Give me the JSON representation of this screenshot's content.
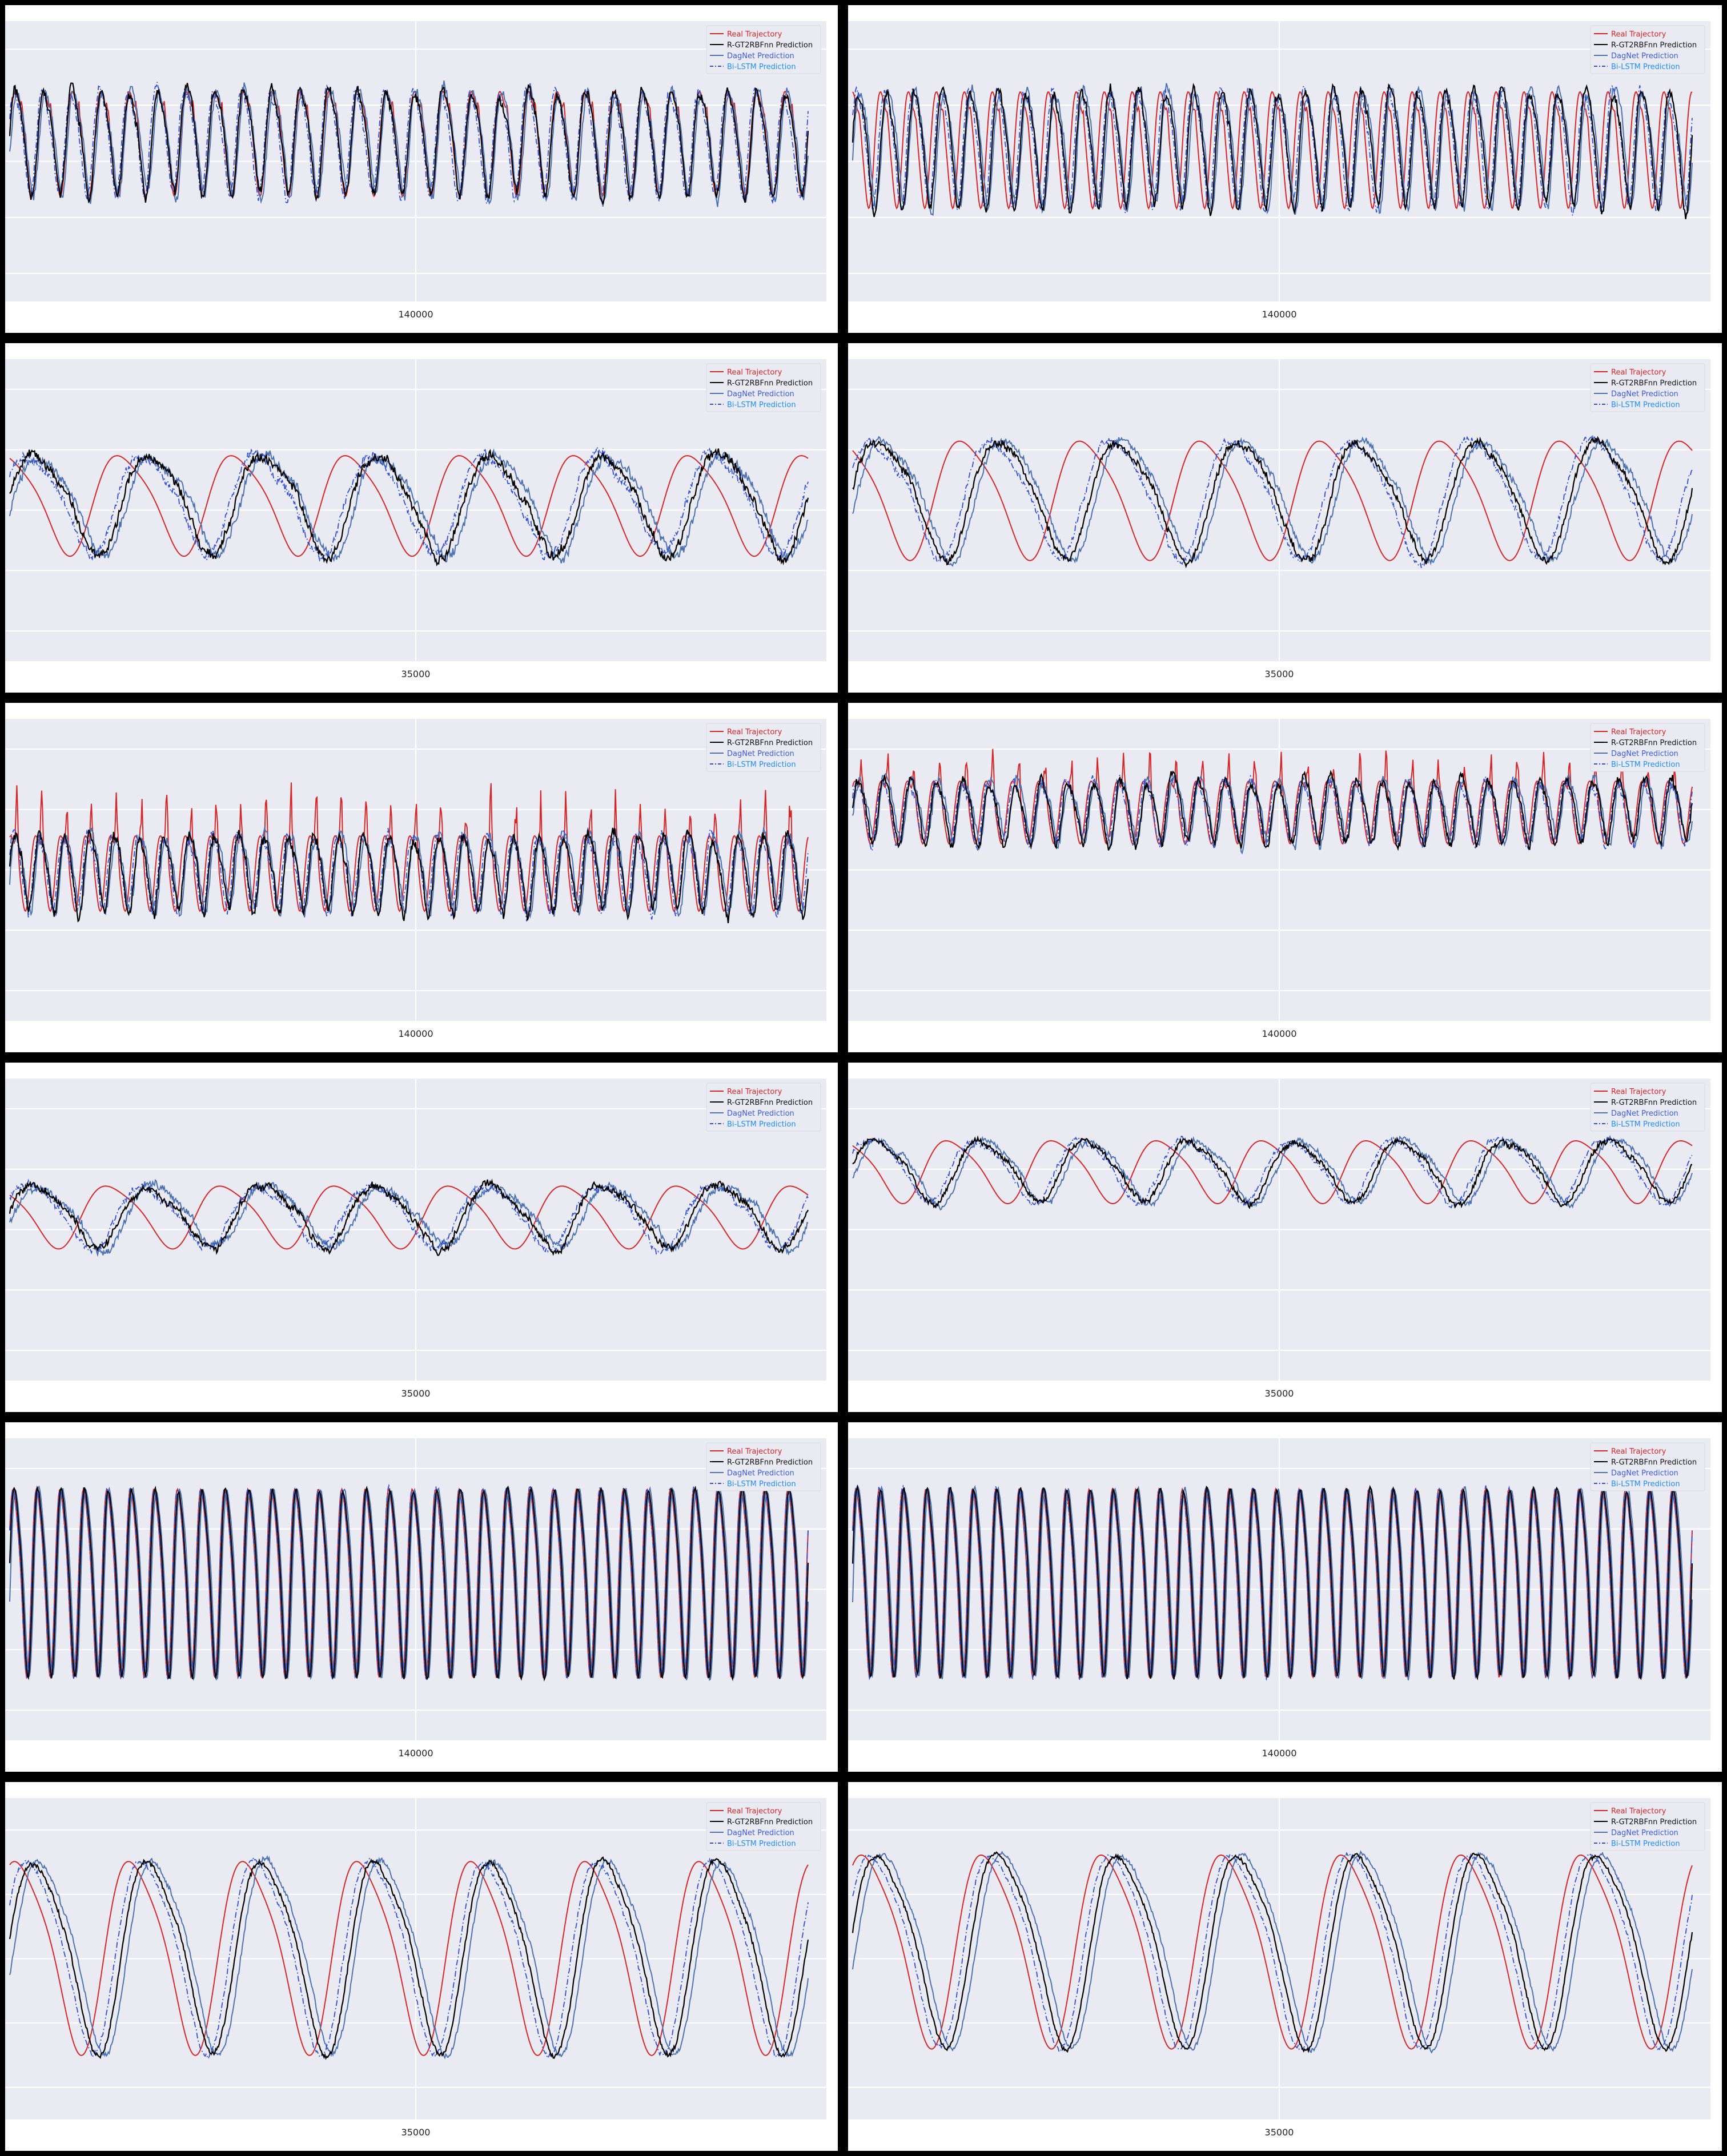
{
  "figure": {
    "legend_labels": [
      "Real Trajectory",
      "R-GT2RBFnn Prediction",
      "DagNet Prediction",
      "Bi-LSTM Prediction"
    ],
    "colors": {
      "real": "#d62728",
      "rgt2rbfnn": "#000000",
      "dagnet": "#4c72b0",
      "bilstm": "#2f4fd6",
      "legend_text_real": "#d62728",
      "legend_text_rgt2rbfnn": "#111111",
      "legend_text_dagnet": "#3b5bdb",
      "legend_text_bilstm": "#1f8fff",
      "plot_bg": "#eaeaf2",
      "grid": "#ffffff"
    }
  },
  "chart_data": [
    {
      "type": "line",
      "xtick_label": "140000",
      "xlim": [
        138500,
        141500
      ],
      "x_ticks": [
        140000
      ],
      "ylim": [
        0,
        1
      ],
      "legend_position": "top-right",
      "grid": true,
      "series_order": [
        "Real Trajectory",
        "R-GT2RBFnn Prediction",
        "DagNet Prediction",
        "Bi-LSTM Prediction"
      ],
      "cycles": 28,
      "center": 0.58,
      "amplitude": 0.18,
      "spikes": 0.05,
      "real_phase": 0.0,
      "noise": 0.03
    },
    {
      "type": "line",
      "xtick_label": "140000",
      "xlim": [
        138500,
        141500
      ],
      "x_ticks": [
        140000
      ],
      "ylim": [
        0,
        1
      ],
      "legend_position": "top-right",
      "grid": true,
      "series_order": [
        "Real Trajectory",
        "R-GT2RBFnn Prediction",
        "DagNet Prediction",
        "Bi-LSTM Prediction"
      ],
      "cycles": 30,
      "center": 0.56,
      "amplitude": 0.2,
      "spikes": 0.04,
      "real_phase": 0.2,
      "noise": 0.03
    },
    {
      "type": "line",
      "xtick_label": "35000",
      "xlim": [
        34600,
        35400
      ],
      "x_ticks": [
        35000
      ],
      "ylim": [
        0,
        1
      ],
      "legend_position": "top-right",
      "grid": true,
      "series_order": [
        "Real Trajectory",
        "R-GT2RBFnn Prediction",
        "DagNet Prediction",
        "Bi-LSTM Prediction"
      ],
      "cycles": 7,
      "center": 0.53,
      "amplitude": 0.16,
      "spikes": 0.0,
      "real_phase": 0.25,
      "noise": 0.025
    },
    {
      "type": "line",
      "xtick_label": "35000",
      "xlim": [
        34600,
        35400
      ],
      "x_ticks": [
        35000
      ],
      "ylim": [
        0,
        1
      ],
      "legend_position": "top-right",
      "grid": true,
      "series_order": [
        "Real Trajectory",
        "R-GT2RBFnn Prediction",
        "DagNet Prediction",
        "Bi-LSTM Prediction"
      ],
      "cycles": 7,
      "center": 0.55,
      "amplitude": 0.19,
      "spikes": 0.0,
      "real_phase": 0.3,
      "noise": 0.02
    },
    {
      "type": "line",
      "xtick_label": "140000",
      "xlim": [
        138500,
        141500
      ],
      "x_ticks": [
        140000
      ],
      "ylim": [
        0,
        1
      ],
      "legend_position": "top-right",
      "grid": true,
      "series_order": [
        "Real Trajectory",
        "R-GT2RBFnn Prediction",
        "DagNet Prediction",
        "Bi-LSTM Prediction"
      ],
      "cycles": 32,
      "center": 0.5,
      "amplitude": 0.12,
      "spikes": 0.18,
      "real_phase": 0.15,
      "noise": 0.03
    },
    {
      "type": "line",
      "xtick_label": "140000",
      "xlim": [
        138500,
        141500
      ],
      "x_ticks": [
        140000
      ],
      "ylim": [
        0,
        1
      ],
      "legend_position": "top-right",
      "grid": true,
      "series_order": [
        "Real Trajectory",
        "R-GT2RBFnn Prediction",
        "DagNet Prediction",
        "Bi-LSTM Prediction"
      ],
      "cycles": 32,
      "center": 0.7,
      "amplitude": 0.1,
      "spikes": 0.12,
      "real_phase": 0.1,
      "noise": 0.025
    },
    {
      "type": "line",
      "xtick_label": "35000",
      "xlim": [
        34600,
        35400
      ],
      "x_ticks": [
        35000
      ],
      "ylim": [
        0,
        1
      ],
      "legend_position": "top-right",
      "grid": true,
      "series_order": [
        "Real Trajectory",
        "R-GT2RBFnn Prediction",
        "DagNet Prediction",
        "Bi-LSTM Prediction"
      ],
      "cycles": 7,
      "center": 0.55,
      "amplitude": 0.1,
      "spikes": 0.0,
      "real_phase": 0.35,
      "noise": 0.02
    },
    {
      "type": "line",
      "xtick_label": "35000",
      "xlim": [
        34600,
        35400
      ],
      "x_ticks": [
        35000
      ],
      "ylim": [
        0,
        1
      ],
      "legend_position": "top-right",
      "grid": true,
      "series_order": [
        "Real Trajectory",
        "R-GT2RBFnn Prediction",
        "DagNet Prediction",
        "Bi-LSTM Prediction"
      ],
      "cycles": 8,
      "center": 0.7,
      "amplitude": 0.1,
      "spikes": 0.0,
      "real_phase": 0.3,
      "noise": 0.015
    },
    {
      "type": "line",
      "xtick_label": "140000",
      "xlim": [
        138500,
        141500
      ],
      "x_ticks": [
        140000
      ],
      "ylim": [
        0,
        1
      ],
      "legend_position": "top-right",
      "grid": true,
      "series_order": [
        "Real Trajectory",
        "R-GT2RBFnn Prediction",
        "DagNet Prediction",
        "Bi-LSTM Prediction"
      ],
      "cycles": 34,
      "center": 0.55,
      "amplitude": 0.3,
      "spikes": 0.0,
      "real_phase": 0.05,
      "noise": 0.01
    },
    {
      "type": "line",
      "xtick_label": "140000",
      "xlim": [
        138500,
        141500
      ],
      "x_ticks": [
        140000
      ],
      "ylim": [
        0,
        1
      ],
      "legend_position": "top-right",
      "grid": true,
      "series_order": [
        "Real Trajectory",
        "R-GT2RBFnn Prediction",
        "DagNet Prediction",
        "Bi-LSTM Prediction"
      ],
      "cycles": 36,
      "center": 0.55,
      "amplitude": 0.3,
      "spikes": 0.0,
      "real_phase": 0.05,
      "noise": 0.01
    },
    {
      "type": "line",
      "xtick_label": "35000",
      "xlim": [
        34600,
        35400
      ],
      "x_ticks": [
        35000
      ],
      "ylim": [
        0,
        1
      ],
      "legend_position": "top-right",
      "grid": true,
      "series_order": [
        "Real Trajectory",
        "R-GT2RBFnn Prediction",
        "DagNet Prediction",
        "Bi-LSTM Prediction"
      ],
      "cycles": 7,
      "center": 0.53,
      "amplitude": 0.29,
      "spikes": 0.0,
      "real_phase": 0.15,
      "noise": 0.012
    },
    {
      "type": "line",
      "xtick_label": "35000",
      "xlim": [
        34600,
        35400
      ],
      "x_ticks": [
        35000
      ],
      "ylim": [
        0,
        1
      ],
      "legend_position": "top-right",
      "grid": true,
      "series_order": [
        "Real Trajectory",
        "R-GT2RBFnn Prediction",
        "DagNet Prediction",
        "Bi-LSTM Prediction"
      ],
      "cycles": 7,
      "center": 0.55,
      "amplitude": 0.29,
      "spikes": 0.0,
      "real_phase": 0.12,
      "noise": 0.01
    }
  ]
}
